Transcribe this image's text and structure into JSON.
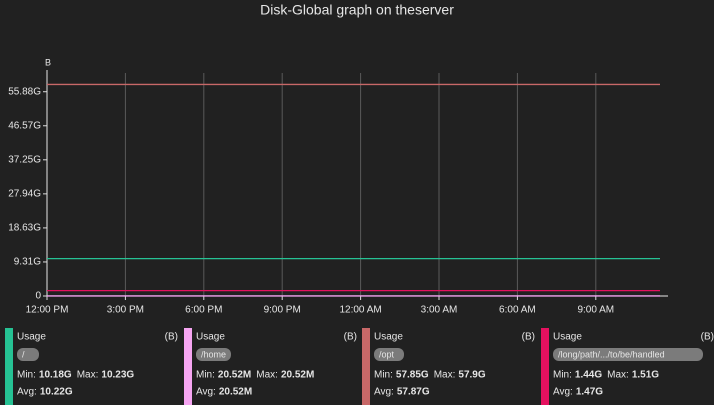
{
  "chart_data": {
    "type": "line",
    "title": "Disk-Global graph on theserver",
    "y_label": "B",
    "x": [
      "12:00 PM",
      "3:00 PM",
      "6:00 PM",
      "9:00 PM",
      "12:00 AM",
      "3:00 AM",
      "6:00 AM",
      "9:00 AM",
      null
    ],
    "series": [
      {
        "name": "/",
        "color": "#26c294",
        "values": [
          10970000000,
          10970000000,
          10970000000,
          10970000000,
          10970000000,
          10970000000,
          10970000000,
          10970000000,
          10970000000
        ]
      },
      {
        "name": "/home",
        "color": "#f6a5f2",
        "values": [
          21516000,
          21516000,
          21516000,
          21516000,
          21516000,
          21516000,
          21516000,
          21516000,
          21516000
        ]
      },
      {
        "name": "/opt",
        "color": "#c86868",
        "values": [
          62140000000,
          62140000000,
          62140000000,
          62140000000,
          62140000000,
          62140000000,
          62140000000,
          62140000000,
          62140000000
        ]
      },
      {
        "name": "/long/path/.../to/be/handled",
        "color": "#e5115f",
        "values": [
          1578000000,
          1578000000,
          1578000000,
          1578000000,
          1578000000,
          1578000000,
          1578000000,
          1578000000,
          1578000000
        ]
      }
    ],
    "ylim": [
      0,
      65500000000
    ],
    "yticks": [
      0,
      {
        "value": 10000000000,
        "label": "9.31G"
      },
      {
        "value": 20000000000,
        "label": "18.63G"
      },
      {
        "value": 30000000000,
        "label": "27.94G"
      },
      {
        "value": 40000000000,
        "label": "37.25G"
      },
      {
        "value": 50000000000,
        "label": "46.57G"
      },
      {
        "value": 60000000000,
        "label": "55.88G"
      }
    ],
    "grid": true,
    "legend": [
      {
        "title": "Usage",
        "unit": "(B)",
        "min_label": "Min:",
        "min": "10.18G",
        "max_label": "Max:",
        "max": "10.23G",
        "avg_label": "Avg:",
        "avg": "10.22G"
      },
      {
        "title": "Usage",
        "unit": "(B)",
        "min_label": "Min:",
        "min": "20.52M",
        "max_label": "Max:",
        "max": "20.52M",
        "avg_label": "Avg:",
        "avg": "20.52M"
      },
      {
        "title": "Usage",
        "unit": "(B)",
        "min_label": "Min:",
        "min": "57.85G",
        "max_label": "Max:",
        "max": "57.9G",
        "avg_label": "Avg:",
        "avg": "57.87G"
      },
      {
        "title": "Usage",
        "unit": "(B)",
        "min_label": "Min:",
        "min": "1.44G",
        "max_label": "Max:",
        "max": "1.51G",
        "avg_label": "Avg:",
        "avg": "1.47G"
      }
    ]
  }
}
